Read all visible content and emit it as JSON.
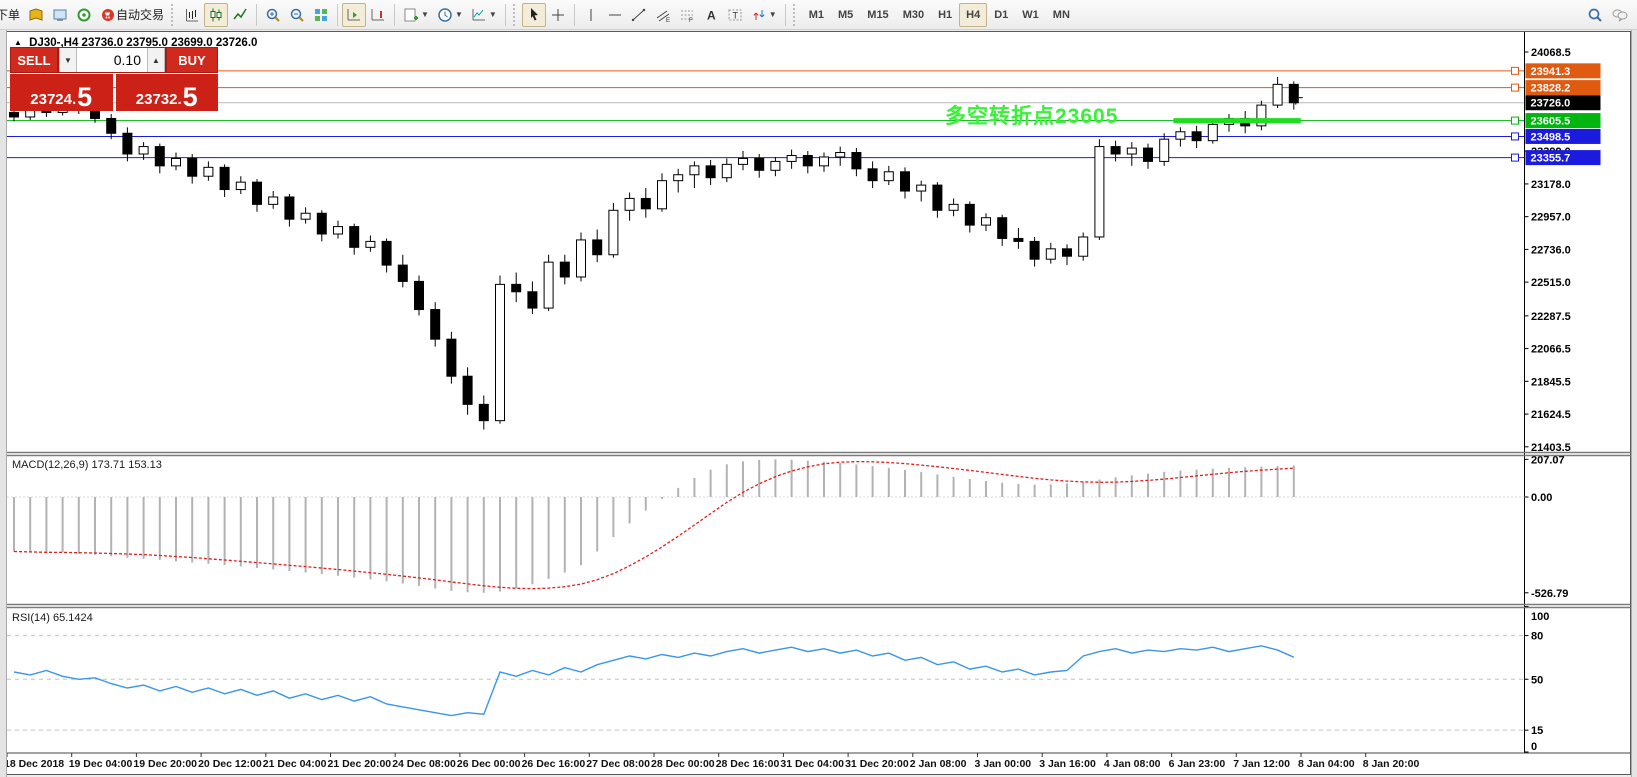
{
  "toolbar": {
    "order_label": "下单",
    "autotrade_label": "自动交易",
    "caret": "▼",
    "timeframes": [
      "M1",
      "M5",
      "M15",
      "M30",
      "H1",
      "H4",
      "D1",
      "W1",
      "MN"
    ],
    "active_timeframe": "H4"
  },
  "header": {
    "collapse_glyph": "▲",
    "symbol_period": "DJ30-,H4",
    "ohlc": "23736.0 23795.0 23699.0 23726.0"
  },
  "trade_panel": {
    "sell_label": "SELL",
    "buy_label": "BUY",
    "volume": "0.10",
    "vol_down_glyph": "▼",
    "vol_up_glyph": "▲",
    "sell_price_main": "23724.",
    "sell_price_frac": "5",
    "buy_price_main": "23732.",
    "buy_price_frac": "5"
  },
  "annotation": {
    "text": "多空转折点23605",
    "color": "#3bef3b"
  },
  "price_axis": {
    "ticks": [
      "24068.5",
      "23399.0",
      "23178.0",
      "22957.0",
      "22736.0",
      "22515.0",
      "22287.5",
      "22066.5",
      "21845.5",
      "21624.5",
      "21403.5"
    ]
  },
  "price_lines": [
    {
      "price": 23941.3,
      "label": "23941.3",
      "line_color": "#e05a10",
      "badge_color": "#e05a10",
      "marker": true
    },
    {
      "price": 23828.2,
      "label": "23828.2",
      "line_color": "#e05a10",
      "badge_color": "#e05a10",
      "marker": true
    },
    {
      "price": 23726.0,
      "label": "23726.0",
      "line_color": "#b9b9b9",
      "badge_color": "#000000",
      "marker": false
    },
    {
      "price": 23605.5,
      "label": "23605.5",
      "line_color": "#00b50f",
      "badge_color": "#00b50f",
      "marker": true
    },
    {
      "price": 23498.5,
      "label": "23498.5",
      "line_color": "#1b1be0",
      "badge_color": "#1b1be0",
      "marker": true
    },
    {
      "price": 23355.7,
      "label": "23355.7",
      "line_color": "#1b1be0",
      "badge_color": "#1b1be0",
      "marker": true
    }
  ],
  "highlight_segment": {
    "price": 23605.5,
    "from_candle": 73,
    "to_candle": 80,
    "color": "#21dd21"
  },
  "last_bar_marker": {
    "candle": 80,
    "price": 23740
  },
  "indicators": {
    "macd_label": "MACD(12,26,9)",
    "macd_value": "173.71",
    "macd_signal": "153.13",
    "rsi_label": "RSI(14)",
    "rsi_value": "65.1424"
  },
  "chart_data": {
    "type": "candlestick",
    "symbol": "DJ30-",
    "timeframe": "H4",
    "price_range_visible": [
      21403.5,
      24068.5
    ],
    "candles_ohlc": [
      [
        23660,
        23680,
        23600,
        23630
      ],
      [
        23630,
        23720,
        23610,
        23690
      ],
      [
        23690,
        23710,
        23630,
        23660
      ],
      [
        23660,
        23730,
        23640,
        23700
      ],
      [
        23700,
        23730,
        23650,
        23680
      ],
      [
        23680,
        23710,
        23590,
        23620
      ],
      [
        23620,
        23650,
        23480,
        23520
      ],
      [
        23520,
        23560,
        23330,
        23380
      ],
      [
        23380,
        23460,
        23340,
        23430
      ],
      [
        23430,
        23450,
        23250,
        23300
      ],
      [
        23300,
        23390,
        23270,
        23350
      ],
      [
        23350,
        23380,
        23180,
        23230
      ],
      [
        23230,
        23330,
        23200,
        23290
      ],
      [
        23290,
        23310,
        23090,
        23140
      ],
      [
        23140,
        23230,
        23110,
        23190
      ],
      [
        23190,
        23210,
        22990,
        23040
      ],
      [
        23040,
        23130,
        23010,
        23090
      ],
      [
        23090,
        23110,
        22890,
        22940
      ],
      [
        22940,
        23020,
        22910,
        22980
      ],
      [
        22980,
        23000,
        22790,
        22840
      ],
      [
        22840,
        22930,
        22810,
        22890
      ],
      [
        22890,
        22910,
        22700,
        22750
      ],
      [
        22750,
        22830,
        22720,
        22790
      ],
      [
        22790,
        22810,
        22580,
        22630
      ],
      [
        22630,
        22700,
        22480,
        22520
      ],
      [
        22520,
        22560,
        22290,
        22330
      ],
      [
        22330,
        22380,
        22080,
        22130
      ],
      [
        22130,
        22180,
        21830,
        21880
      ],
      [
        21880,
        21940,
        21620,
        21690
      ],
      [
        21690,
        21750,
        21520,
        21580
      ],
      [
        21580,
        22560,
        21560,
        22500
      ],
      [
        22500,
        22580,
        22380,
        22450
      ],
      [
        22450,
        22520,
        22300,
        22340
      ],
      [
        22340,
        22700,
        22320,
        22650
      ],
      [
        22650,
        22700,
        22500,
        22550
      ],
      [
        22550,
        22850,
        22520,
        22800
      ],
      [
        22800,
        22870,
        22650,
        22700
      ],
      [
        22700,
        23050,
        22680,
        23000
      ],
      [
        23000,
        23120,
        22930,
        23080
      ],
      [
        23080,
        23150,
        22950,
        23010
      ],
      [
        23010,
        23250,
        22990,
        23200
      ],
      [
        23200,
        23280,
        23120,
        23240
      ],
      [
        23240,
        23330,
        23150,
        23300
      ],
      [
        23300,
        23340,
        23170,
        23220
      ],
      [
        23220,
        23350,
        23190,
        23310
      ],
      [
        23310,
        23400,
        23270,
        23350
      ],
      [
        23350,
        23380,
        23220,
        23270
      ],
      [
        23270,
        23360,
        23230,
        23330
      ],
      [
        23330,
        23410,
        23280,
        23370
      ],
      [
        23370,
        23400,
        23250,
        23300
      ],
      [
        23300,
        23390,
        23260,
        23360
      ],
      [
        23360,
        23430,
        23300,
        23390
      ],
      [
        23390,
        23420,
        23230,
        23280
      ],
      [
        23280,
        23330,
        23150,
        23200
      ],
      [
        23200,
        23300,
        23170,
        23260
      ],
      [
        23260,
        23290,
        23080,
        23130
      ],
      [
        23130,
        23200,
        23060,
        23170
      ],
      [
        23170,
        23190,
        22950,
        23000
      ],
      [
        23000,
        23080,
        22960,
        23040
      ],
      [
        23040,
        23060,
        22850,
        22900
      ],
      [
        22900,
        22980,
        22860,
        22950
      ],
      [
        22950,
        22970,
        22760,
        22810
      ],
      [
        22810,
        22880,
        22740,
        22790
      ],
      [
        22790,
        22820,
        22620,
        22670
      ],
      [
        22670,
        22780,
        22640,
        22740
      ],
      [
        22740,
        22770,
        22630,
        22690
      ],
      [
        22690,
        22850,
        22660,
        22820
      ],
      [
        22820,
        23480,
        22800,
        23430
      ],
      [
        23430,
        23470,
        23330,
        23380
      ],
      [
        23380,
        23460,
        23300,
        23420
      ],
      [
        23420,
        23450,
        23280,
        23330
      ],
      [
        23330,
        23520,
        23300,
        23480
      ],
      [
        23480,
        23560,
        23430,
        23530
      ],
      [
        23530,
        23570,
        23420,
        23470
      ],
      [
        23470,
        23610,
        23450,
        23580
      ],
      [
        23580,
        23650,
        23530,
        23620
      ],
      [
        23620,
        23670,
        23520,
        23570
      ],
      [
        23570,
        23740,
        23540,
        23710
      ],
      [
        23710,
        23900,
        23690,
        23850
      ],
      [
        23850,
        23870,
        23680,
        23726
      ]
    ],
    "macd": {
      "params": "12,26,9",
      "axis": [
        "207.07",
        "0.00",
        "-526.79"
      ],
      "hist": [
        -300,
        -304,
        -309,
        -306,
        -312,
        -318,
        -326,
        -334,
        -340,
        -347,
        -354,
        -360,
        -367,
        -374,
        -382,
        -390,
        -398,
        -407,
        -415,
        -424,
        -433,
        -443,
        -453,
        -464,
        -476,
        -489,
        -503,
        -516,
        -524,
        -526.79,
        -520,
        -503,
        -480,
        -450,
        -415,
        -375,
        -300,
        -220,
        -145,
        -75,
        -10,
        50,
        105,
        150,
        180,
        196,
        204,
        207.07,
        205,
        200,
        194,
        187,
        179,
        170,
        160,
        149,
        137,
        124,
        111,
        99,
        88,
        79,
        72,
        68,
        69,
        75,
        84,
        96,
        108,
        119,
        129,
        138,
        145,
        151,
        156,
        160,
        164,
        167,
        170,
        173.71
      ],
      "last_main": 173.71,
      "last_signal": 153.13
    },
    "rsi": {
      "period": 14,
      "levels": [
        80,
        50,
        15
      ],
      "axis_labels": [
        "100",
        "80",
        "50",
        "15",
        "0"
      ],
      "values": [
        55,
        53,
        56,
        52,
        50,
        51,
        47,
        44,
        46,
        42,
        45,
        41,
        44,
        40,
        43,
        39,
        42,
        37,
        40,
        36,
        39,
        35,
        38,
        33,
        31,
        29,
        27,
        25,
        27,
        26,
        55,
        52,
        56,
        53,
        58,
        55,
        60,
        63,
        66,
        64,
        67,
        65,
        68,
        66,
        69,
        71,
        68,
        70,
        72,
        69,
        71,
        68,
        70,
        66,
        68,
        63,
        65,
        60,
        62,
        57,
        59,
        55,
        57,
        53,
        55,
        56,
        66,
        69,
        71,
        68,
        70,
        69,
        71,
        70,
        72,
        69,
        71,
        73,
        70,
        65.14
      ],
      "last": 65.1424
    },
    "time_labels": [
      "18 Dec 2018",
      "19 Dec 04:00",
      "19 Dec 20:00",
      "20 Dec 12:00",
      "21 Dec 04:00",
      "21 Dec 20:00",
      "24 Dec 08:00",
      "26 Dec 00:00",
      "26 Dec 16:00",
      "27 Dec 08:00",
      "28 Dec 00:00",
      "28 Dec 16:00",
      "31 Dec 04:00",
      "31 Dec 20:00",
      "2 Jan 08:00",
      "3 Jan 00:00",
      "3 Jan 16:00",
      "4 Jan 08:00",
      "6 Jan 23:00",
      "7 Jan 12:00",
      "8 Jan 04:00",
      "8 Jan 20:00"
    ]
  }
}
